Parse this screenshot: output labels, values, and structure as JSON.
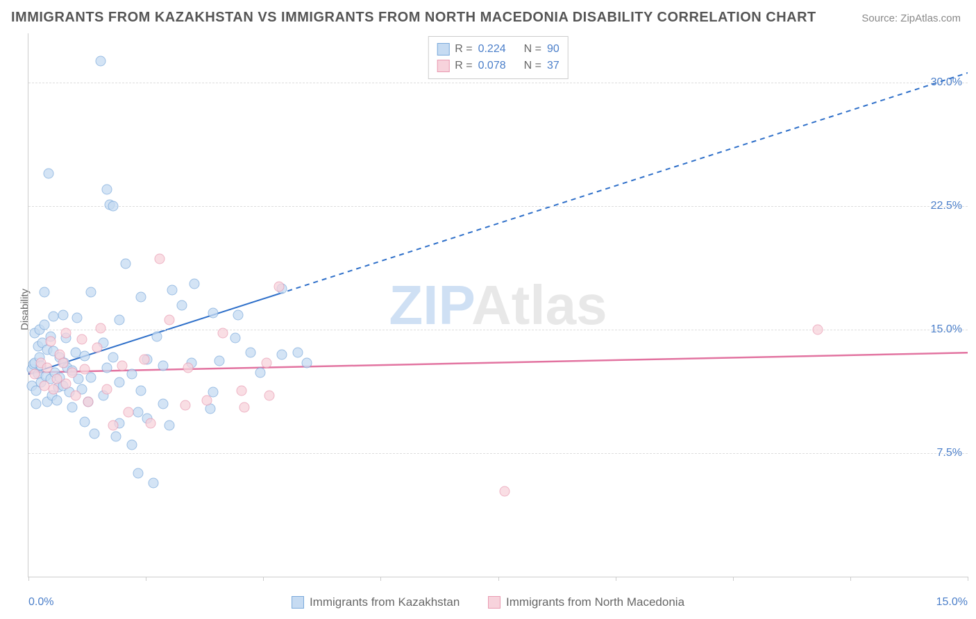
{
  "title": "IMMIGRANTS FROM KAZAKHSTAN VS IMMIGRANTS FROM NORTH MACEDONIA DISABILITY CORRELATION CHART",
  "source_prefix": "Source: ",
  "source_name": "ZipAtlas.com",
  "ylabel": "Disability",
  "watermark": {
    "zip": "ZIP",
    "atlas": "Atlas"
  },
  "chart": {
    "type": "scatter",
    "xlim": [
      0,
      15
    ],
    "ylim": [
      0,
      33
    ],
    "x_ticks": [
      0.0,
      1.875,
      3.75,
      5.625,
      7.5,
      9.375,
      11.25,
      13.125,
      15.0
    ],
    "x_tick_labels": {
      "0": "0.0%",
      "15": "15.0%"
    },
    "y_gridlines": [
      7.5,
      15.0,
      22.5,
      30.0
    ],
    "y_tick_labels": [
      "7.5%",
      "15.0%",
      "22.5%",
      "30.0%"
    ],
    "background_color": "#ffffff",
    "grid_color": "#dddddd",
    "axis_color": "#cccccc",
    "tick_label_color": "#4a7ec9",
    "marker_radius": 7.5,
    "marker_opacity": 0.75,
    "series": [
      {
        "id": "kazakhstan",
        "label": "Immigrants from Kazakhstan",
        "fill": "#c6dbf2",
        "stroke": "#7aa9db",
        "R": "0.224",
        "N": "90",
        "trend": {
          "color": "#2e6fc9",
          "width": 2,
          "solid_to_x": 4.0,
          "y_at_x0": 12.3,
          "y_at_xmax": 30.6
        },
        "points": [
          [
            0.05,
            11.6
          ],
          [
            0.05,
            12.6
          ],
          [
            0.08,
            12.9
          ],
          [
            0.1,
            14.8
          ],
          [
            0.1,
            13.0
          ],
          [
            0.12,
            11.3
          ],
          [
            0.12,
            10.5
          ],
          [
            0.15,
            12.3
          ],
          [
            0.15,
            14.0
          ],
          [
            0.18,
            15.0
          ],
          [
            0.18,
            13.3
          ],
          [
            0.2,
            11.8
          ],
          [
            0.2,
            12.8
          ],
          [
            0.22,
            14.2
          ],
          [
            0.25,
            17.3
          ],
          [
            0.25,
            15.3
          ],
          [
            0.28,
            12.2
          ],
          [
            0.3,
            10.6
          ],
          [
            0.3,
            13.8
          ],
          [
            0.32,
            24.5
          ],
          [
            0.35,
            14.6
          ],
          [
            0.35,
            12.0
          ],
          [
            0.38,
            11.0
          ],
          [
            0.4,
            13.7
          ],
          [
            0.4,
            15.8
          ],
          [
            0.42,
            12.4
          ],
          [
            0.45,
            10.7
          ],
          [
            0.48,
            11.5
          ],
          [
            0.5,
            13.3
          ],
          [
            0.5,
            12.1
          ],
          [
            0.55,
            15.9
          ],
          [
            0.55,
            11.6
          ],
          [
            0.58,
            13.0
          ],
          [
            0.6,
            14.5
          ],
          [
            0.62,
            12.7
          ],
          [
            0.65,
            11.2
          ],
          [
            0.7,
            12.5
          ],
          [
            0.7,
            10.3
          ],
          [
            0.75,
            13.6
          ],
          [
            0.78,
            15.7
          ],
          [
            0.8,
            12.0
          ],
          [
            0.85,
            11.4
          ],
          [
            0.9,
            13.4
          ],
          [
            0.9,
            9.4
          ],
          [
            0.95,
            10.6
          ],
          [
            1.0,
            12.1
          ],
          [
            1.0,
            17.3
          ],
          [
            1.05,
            8.7
          ],
          [
            1.15,
            31.3
          ],
          [
            1.2,
            14.2
          ],
          [
            1.2,
            11.0
          ],
          [
            1.25,
            12.7
          ],
          [
            1.25,
            23.5
          ],
          [
            1.3,
            22.6
          ],
          [
            1.35,
            22.5
          ],
          [
            1.35,
            13.3
          ],
          [
            1.4,
            8.5
          ],
          [
            1.45,
            11.8
          ],
          [
            1.45,
            9.3
          ],
          [
            1.45,
            15.6
          ],
          [
            1.55,
            19.0
          ],
          [
            1.65,
            12.3
          ],
          [
            1.65,
            8.0
          ],
          [
            1.75,
            10.0
          ],
          [
            1.75,
            6.3
          ],
          [
            1.8,
            17.0
          ],
          [
            1.8,
            11.3
          ],
          [
            1.9,
            9.6
          ],
          [
            1.9,
            13.2
          ],
          [
            2.0,
            5.7
          ],
          [
            2.05,
            14.6
          ],
          [
            2.15,
            12.8
          ],
          [
            2.15,
            10.5
          ],
          [
            2.25,
            9.2
          ],
          [
            2.3,
            17.4
          ],
          [
            2.45,
            16.5
          ],
          [
            2.6,
            13.0
          ],
          [
            2.65,
            17.8
          ],
          [
            2.9,
            10.2
          ],
          [
            2.95,
            16.0
          ],
          [
            2.95,
            11.2
          ],
          [
            3.05,
            13.1
          ],
          [
            3.3,
            14.5
          ],
          [
            3.35,
            15.9
          ],
          [
            3.55,
            13.6
          ],
          [
            3.7,
            12.4
          ],
          [
            4.05,
            17.5
          ],
          [
            4.05,
            13.5
          ],
          [
            4.3,
            13.6
          ],
          [
            4.45,
            13.0
          ]
        ]
      },
      {
        "id": "north_macedonia",
        "label": "Immigrants from North Macedonia",
        "fill": "#f7d3dc",
        "stroke": "#e99ab1",
        "R": "0.078",
        "N": "37",
        "trend": {
          "color": "#e273a0",
          "width": 2.5,
          "solid_to_x": 15.0,
          "y_at_x0": 12.4,
          "y_at_xmax": 13.6
        },
        "points": [
          [
            0.1,
            12.3
          ],
          [
            0.2,
            13.0
          ],
          [
            0.25,
            11.6
          ],
          [
            0.3,
            12.7
          ],
          [
            0.35,
            14.3
          ],
          [
            0.4,
            11.4
          ],
          [
            0.45,
            12.0
          ],
          [
            0.5,
            13.5
          ],
          [
            0.55,
            13.0
          ],
          [
            0.6,
            11.7
          ],
          [
            0.6,
            14.8
          ],
          [
            0.7,
            12.4
          ],
          [
            0.75,
            11.0
          ],
          [
            0.85,
            14.4
          ],
          [
            0.9,
            12.6
          ],
          [
            0.95,
            10.6
          ],
          [
            1.1,
            13.9
          ],
          [
            1.15,
            15.1
          ],
          [
            1.25,
            11.4
          ],
          [
            1.35,
            9.2
          ],
          [
            1.5,
            12.8
          ],
          [
            1.6,
            10.0
          ],
          [
            1.85,
            13.2
          ],
          [
            1.95,
            9.3
          ],
          [
            2.1,
            19.3
          ],
          [
            2.25,
            15.6
          ],
          [
            2.5,
            10.4
          ],
          [
            2.55,
            12.7
          ],
          [
            2.85,
            10.7
          ],
          [
            3.1,
            14.8
          ],
          [
            3.4,
            11.3
          ],
          [
            3.45,
            10.3
          ],
          [
            3.8,
            13.0
          ],
          [
            3.85,
            11.0
          ],
          [
            4.0,
            17.6
          ],
          [
            7.6,
            5.2
          ],
          [
            12.6,
            15.0
          ]
        ]
      }
    ]
  },
  "legend": {
    "R_label": "R =",
    "N_label": "N ="
  }
}
